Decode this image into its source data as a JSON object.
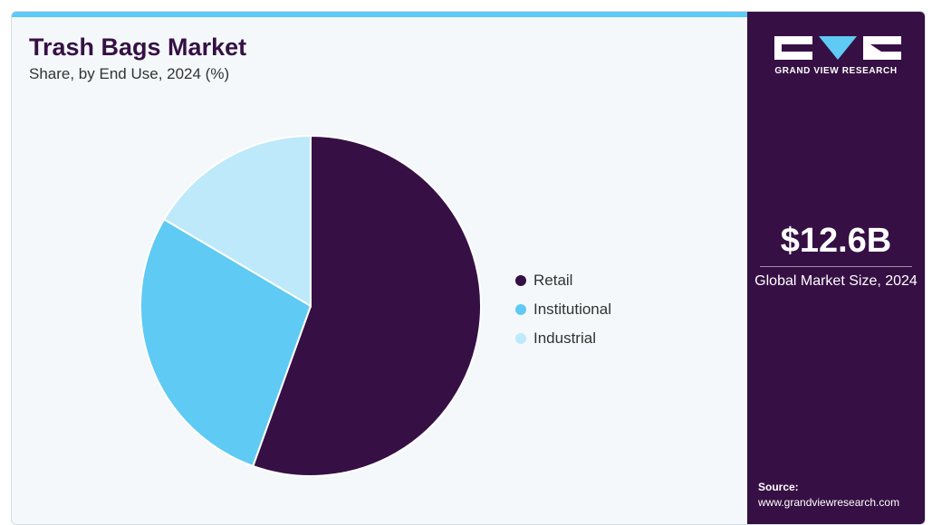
{
  "header": {
    "title": "Trash Bags Market",
    "subtitle": "Share, by End Use, 2024 (%)"
  },
  "chart_data": {
    "type": "pie",
    "title": "Trash Bags Market",
    "subtitle": "Share, by End Use, 2024 (%)",
    "categories": [
      "Retail",
      "Institutional",
      "Industrial"
    ],
    "values": [
      55.5,
      28.0,
      16.5
    ],
    "colors": [
      "#361044",
      "#5fcaf3",
      "#bde9fa"
    ],
    "legend_position": "right",
    "start_angle": "12 o'clock, clockwise"
  },
  "sidebar": {
    "brand": "GRAND VIEW RESEARCH",
    "market_size": "$12.6B",
    "market_label": "Global Market Size, 2024",
    "source_title": "Source:",
    "source_url": "www.grandviewresearch.com"
  },
  "colors": {
    "accent": "#5fcaf3",
    "brand_dark": "#361044",
    "panel_bg": "#f4f8fb"
  }
}
